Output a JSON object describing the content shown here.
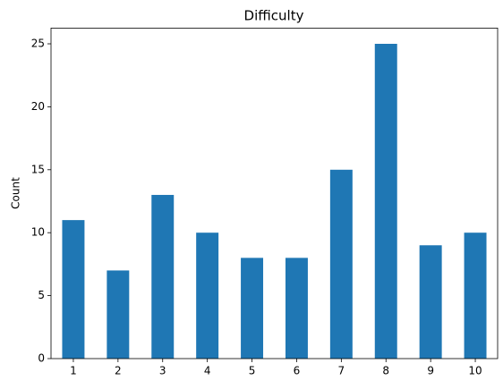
{
  "chart_data": {
    "type": "bar",
    "title": "Difficulty",
    "y_label": "Count",
    "categories": [
      "1",
      "2",
      "3",
      "4",
      "5",
      "6",
      "7",
      "8",
      "9",
      "10"
    ],
    "values": [
      11,
      7,
      13,
      10,
      8,
      8,
      15,
      25,
      9,
      10
    ],
    "color": "#1f77b4",
    "ylim": [
      0,
      26.25
    ],
    "yticks": [
      0,
      5,
      10,
      15,
      20,
      25
    ],
    "grid": false
  }
}
